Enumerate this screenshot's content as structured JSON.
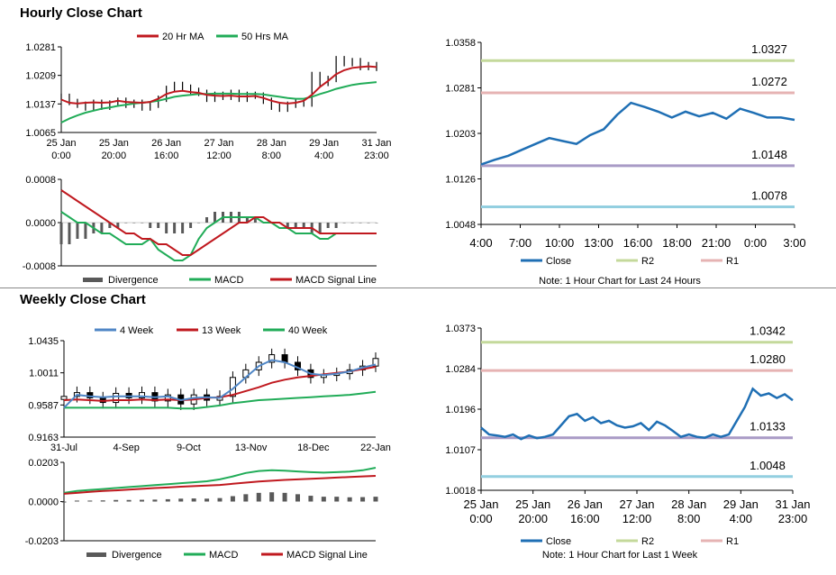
{
  "titles": {
    "hourly": "Hourly Close Chart",
    "weekly": "Weekly Close Chart"
  },
  "colors": {
    "close": "#1f6fb4",
    "r2": "#c4d99b",
    "r1": "#e6b3b3",
    "s1": "#a99bc6",
    "s2": "#93cfe0",
    "ma_red": "#c0191f",
    "ma_green": "#21ac58",
    "ma_blue": "#4f86c6",
    "divergence": "#595959"
  },
  "chart_data": [
    {
      "id": "hourly_price",
      "type": "line",
      "legend": [
        "20 Hr MA",
        "50 Hrs MA"
      ],
      "y_ticks": [
        "1.0281",
        "1.0209",
        "1.0137",
        "1.0065"
      ],
      "ylim": [
        1.0065,
        1.0281
      ],
      "x_ticks": [
        [
          "25 Jan",
          "0:00"
        ],
        [
          "25 Jan",
          "20:00"
        ],
        [
          "26 Jan",
          "16:00"
        ],
        [
          "27 Jan",
          "12:00"
        ],
        [
          "28 Jan",
          "8:00"
        ],
        [
          "29 Jan",
          "4:00"
        ],
        [
          "31 Jan",
          "23:00"
        ]
      ],
      "close": [
        1.0155,
        1.0142,
        1.0135,
        1.0128,
        1.014,
        1.013,
        1.0138,
        1.0145,
        1.0135,
        1.014,
        1.0128,
        1.0135,
        1.015,
        1.0175,
        1.0185,
        1.0178,
        1.017,
        1.0165,
        1.015,
        1.016,
        1.0155,
        1.0165,
        1.015,
        1.016,
        1.0158,
        1.0145,
        1.013,
        1.0125,
        1.0135,
        1.014,
        1.0138,
        1.021,
        1.019,
        1.02,
        1.025,
        1.024,
        1.0245,
        1.023,
        1.0235,
        1.0228
      ],
      "ma20": [
        1.0148,
        1.014,
        1.0138,
        1.014,
        1.0141,
        1.014,
        1.0141,
        1.0145,
        1.0142,
        1.0141,
        1.014,
        1.0142,
        1.015,
        1.0162,
        1.0168,
        1.017,
        1.0167,
        1.0165,
        1.016,
        1.0158,
        1.0157,
        1.0158,
        1.0156,
        1.0156,
        1.0157,
        1.0152,
        1.0145,
        1.014,
        1.0138,
        1.014,
        1.0145,
        1.016,
        1.018,
        1.0195,
        1.0212,
        1.0222,
        1.0228,
        1.023,
        1.0232,
        1.023
      ],
      "ma50": [
        1.009,
        1.01,
        1.0108,
        1.0115,
        1.012,
        1.0125,
        1.0128,
        1.0132,
        1.0135,
        1.0138,
        1.014,
        1.0142,
        1.0145,
        1.015,
        1.0155,
        1.0158,
        1.016,
        1.0162,
        1.0162,
        1.0163,
        1.0163,
        1.0163,
        1.0162,
        1.0162,
        1.0162,
        1.0161,
        1.0158,
        1.0155,
        1.0152,
        1.015,
        1.015,
        1.0155,
        1.0162,
        1.0168,
        1.0175,
        1.018,
        1.0185,
        1.0188,
        1.019,
        1.0192
      ]
    },
    {
      "id": "hourly_macd",
      "type": "bar",
      "legend": [
        "Divergence",
        "MACD",
        "MACD Signal Line"
      ],
      "y_ticks": [
        "0.0008",
        "0.0000",
        "-0.0008"
      ],
      "ylim": [
        -0.0008,
        0.0008
      ],
      "divergence": [
        -0.0004,
        -0.0004,
        -0.0003,
        -0.0003,
        -0.0002,
        -0.0002,
        -0.0001,
        -0.0001,
        0.0,
        0.0,
        0.0,
        -0.0001,
        -0.0001,
        -0.0002,
        -0.0002,
        -0.0002,
        -0.0001,
        0.0,
        0.0001,
        0.0002,
        0.0002,
        0.0002,
        0.0002,
        0.0001,
        0.0001,
        0.0,
        0.0,
        0.0,
        -0.0001,
        -0.0001,
        -0.0001,
        -0.0002,
        -0.0002,
        -0.0001,
        -0.0001,
        0.0,
        0.0,
        0.0,
        0.0,
        0.0
      ],
      "macd": [
        0.0002,
        0.0001,
        0.0,
        0.0,
        -0.0001,
        -0.0002,
        -0.0002,
        -0.0003,
        -0.0004,
        -0.0004,
        -0.0004,
        -0.0003,
        -0.0005,
        -0.0006,
        -0.0007,
        -0.0007,
        -0.0006,
        -0.0003,
        -0.0001,
        0.0,
        0.0001,
        0.0001,
        0.0001,
        0.0001,
        0.0001,
        0.0,
        0.0,
        -0.0001,
        -0.0001,
        -0.0002,
        -0.0002,
        -0.0002,
        -0.0003,
        -0.0003,
        -0.0002,
        -0.0002,
        -0.0002,
        -0.0002,
        -0.0002,
        -0.0002
      ],
      "signal": [
        0.0006,
        0.0005,
        0.0004,
        0.0003,
        0.0002,
        0.0001,
        0.0,
        -0.0001,
        -0.0002,
        -0.0002,
        -0.0003,
        -0.0003,
        -0.0004,
        -0.0004,
        -0.0005,
        -0.0006,
        -0.0006,
        -0.0005,
        -0.0004,
        -0.0003,
        -0.0002,
        -0.0001,
        0.0,
        0.0,
        0.0001,
        0.0001,
        0.0,
        0.0,
        -0.0001,
        -0.0001,
        -0.0001,
        -0.0001,
        -0.0002,
        -0.0002,
        -0.0002,
        -0.0002,
        -0.0002,
        -0.0002,
        -0.0002,
        -0.0002
      ]
    },
    {
      "id": "hourly_24h",
      "type": "line",
      "y_ticks": [
        "1.0358",
        "1.0281",
        "1.0203",
        "1.0126",
        "1.0048"
      ],
      "ylim": [
        1.0048,
        1.0358
      ],
      "x_ticks": [
        "4:00",
        "7:00",
        "10:00",
        "13:00",
        "16:00",
        "18:00",
        "21:00",
        "0:00",
        "3:00"
      ],
      "close": [
        1.015,
        1.0158,
        1.0165,
        1.0175,
        1.0185,
        1.0195,
        1.019,
        1.0185,
        1.02,
        1.021,
        1.0235,
        1.0255,
        1.0248,
        1.024,
        1.023,
        1.024,
        1.0232,
        1.0238,
        1.0228,
        1.0245,
        1.0238,
        1.023,
        1.023,
        1.0226
      ],
      "levels": [
        {
          "name": "R2",
          "value": 1.0327,
          "label": "1.0327"
        },
        {
          "name": "R1",
          "value": 1.0272,
          "label": "1.0272"
        },
        {
          "name": "S1",
          "value": 1.0148,
          "label": "1.0148"
        },
        {
          "name": "S2",
          "value": 1.0078,
          "label": "1.0078"
        }
      ],
      "legend": [
        "Close",
        "R2",
        "R1"
      ],
      "note": "Note: 1 Hour Chart for Last 24 Hours"
    },
    {
      "id": "weekly_price",
      "type": "line",
      "legend": [
        "4 Week",
        "13 Week",
        "40 Week"
      ],
      "y_ticks": [
        "1.0435",
        "1.0011",
        "0.9587",
        "0.9163"
      ],
      "ylim": [
        0.9163,
        1.0435
      ],
      "x_ticks": [
        "31-Jul",
        "4-Sep",
        "9-Oct",
        "13-Nov",
        "18-Dec",
        "22-Jan"
      ],
      "close": [
        0.97,
        0.975,
        0.968,
        0.962,
        0.974,
        0.968,
        0.975,
        0.964,
        0.972,
        0.96,
        0.972,
        0.965,
        0.97,
        0.995,
        1.005,
        1.015,
        1.025,
        1.015,
        1.005,
        0.995,
        0.998,
        1.0,
        1.005,
        1.01,
        1.02
      ],
      "ma4": [
        0.955,
        0.972,
        0.97,
        0.969,
        0.97,
        0.97,
        0.97,
        0.969,
        0.97,
        0.965,
        0.968,
        0.969,
        0.968,
        0.98,
        0.995,
        1.01,
        1.018,
        1.015,
        1.008,
        1.0,
        0.998,
        1.0,
        1.003,
        1.008,
        1.012
      ],
      "ma13": [
        0.965,
        0.966,
        0.965,
        0.964,
        0.965,
        0.965,
        0.966,
        0.965,
        0.966,
        0.965,
        0.966,
        0.968,
        0.969,
        0.972,
        0.977,
        0.982,
        0.988,
        0.992,
        0.995,
        0.997,
        0.999,
        1.001,
        1.003,
        1.006,
        1.009
      ],
      "ma40": [
        0.955,
        0.955,
        0.955,
        0.955,
        0.955,
        0.955,
        0.955,
        0.955,
        0.955,
        0.954,
        0.954,
        0.956,
        0.958,
        0.961,
        0.963,
        0.965,
        0.966,
        0.967,
        0.968,
        0.969,
        0.97,
        0.971,
        0.972,
        0.974,
        0.976
      ]
    },
    {
      "id": "weekly_macd",
      "type": "bar",
      "legend": [
        "Divergence",
        "MACD",
        "MACD Signal Line"
      ],
      "y_ticks": [
        "0.0203",
        "0.0000",
        "-0.0203"
      ],
      "ylim": [
        -0.0203,
        0.0203
      ],
      "divergence": [
        -0.0005,
        0.0005,
        0.0005,
        0.0006,
        0.0008,
        0.0008,
        0.0009,
        0.001,
        0.0012,
        0.0015,
        0.0016,
        0.0015,
        0.0018,
        0.0028,
        0.0038,
        0.0045,
        0.0048,
        0.0045,
        0.0038,
        0.003,
        0.0025,
        0.0025,
        0.0022,
        0.0023,
        0.0025
      ],
      "macd": [
        0.0045,
        0.0055,
        0.006,
        0.0065,
        0.007,
        0.0075,
        0.008,
        0.0085,
        0.009,
        0.0095,
        0.01,
        0.0105,
        0.0115,
        0.013,
        0.0148,
        0.0158,
        0.0162,
        0.016,
        0.0156,
        0.0152,
        0.015,
        0.0152,
        0.0155,
        0.0162,
        0.0175
      ],
      "signal": [
        0.004,
        0.0045,
        0.005,
        0.0055,
        0.0058,
        0.0062,
        0.0066,
        0.007,
        0.0073,
        0.0077,
        0.008,
        0.0083,
        0.0086,
        0.0092,
        0.0098,
        0.0104,
        0.0108,
        0.0112,
        0.0115,
        0.0118,
        0.0121,
        0.0124,
        0.0127,
        0.013,
        0.0133
      ]
    },
    {
      "id": "weekly_1w",
      "type": "line",
      "y_ticks": [
        "1.0373",
        "1.0284",
        "1.0196",
        "1.0107",
        "1.0018"
      ],
      "ylim": [
        1.0018,
        1.0373
      ],
      "x_ticks": [
        [
          "25 Jan",
          "0:00"
        ],
        [
          "25 Jan",
          "20:00"
        ],
        [
          "26 Jan",
          "16:00"
        ],
        [
          "27 Jan",
          "12:00"
        ],
        [
          "28 Jan",
          "8:00"
        ],
        [
          "29 Jan",
          "4:00"
        ],
        [
          "31 Jan",
          "23:00"
        ]
      ],
      "close": [
        1.0155,
        1.014,
        1.0138,
        1.0135,
        1.014,
        1.013,
        1.0138,
        1.0132,
        1.0135,
        1.014,
        1.016,
        1.018,
        1.0185,
        1.017,
        1.0178,
        1.0165,
        1.017,
        1.016,
        1.0155,
        1.0158,
        1.0165,
        1.015,
        1.0168,
        1.016,
        1.0148,
        1.0135,
        1.014,
        1.0135,
        1.0133,
        1.014,
        1.0135,
        1.014,
        1.017,
        1.02,
        1.024,
        1.0225,
        1.023,
        1.022,
        1.0228,
        1.0215
      ],
      "levels": [
        {
          "name": "R2",
          "value": 1.0342,
          "label": "1.0342"
        },
        {
          "name": "R1",
          "value": 1.028,
          "label": "1.0280"
        },
        {
          "name": "S1",
          "value": 1.0133,
          "label": "1.0133"
        },
        {
          "name": "S2",
          "value": 1.0048,
          "label": "1.0048"
        }
      ],
      "legend": [
        "Close",
        "R2",
        "R1"
      ],
      "note": "Note: 1 Hour Chart for Last 1 Week"
    }
  ]
}
